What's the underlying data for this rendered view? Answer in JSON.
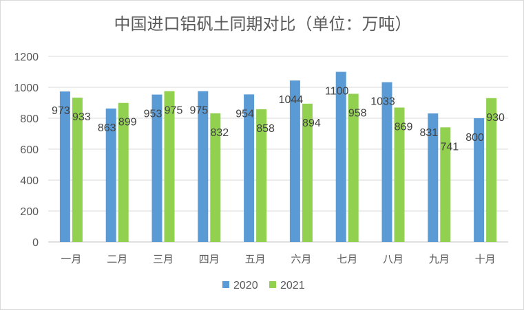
{
  "chart_data": {
    "type": "bar",
    "title": "中国进口铝矾土同期对比（单位：万吨）",
    "categories": [
      "一月",
      "二月",
      "三月",
      "四月",
      "五月",
      "六月",
      "七月",
      "八月",
      "九月",
      "十月"
    ],
    "series": [
      {
        "name": "2020",
        "color": "#5b9bd5",
        "values": [
          973,
          863,
          953,
          975,
          954,
          1044,
          1100,
          1033,
          831,
          800
        ]
      },
      {
        "name": "2021",
        "color": "#92d050",
        "values": [
          933,
          899,
          975,
          832,
          858,
          894,
          958,
          869,
          741,
          930
        ]
      }
    ],
    "ylim": [
      0,
      1200
    ],
    "yticks": [
      0,
      200,
      400,
      600,
      800,
      1000,
      1200
    ],
    "grid": true,
    "legend": "bottom",
    "data_labels": true
  }
}
